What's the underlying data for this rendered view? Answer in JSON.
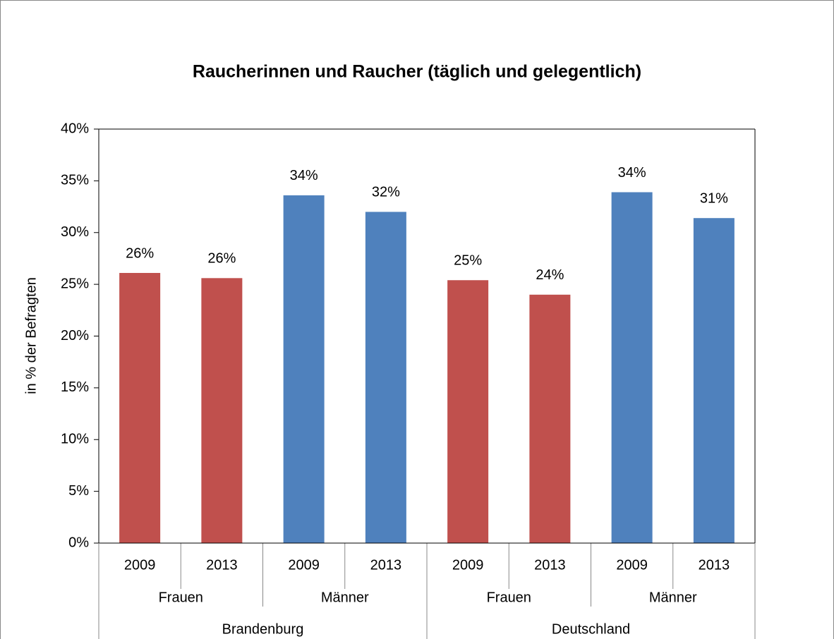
{
  "chart_data": {
    "type": "bar",
    "title": "Raucherinnen und Raucher (täglich und gelegentlich)",
    "y_label": "in % der Befragten",
    "categories": [
      "2009",
      "2013",
      "2009",
      "2013",
      "2009",
      "2013",
      "2009",
      "2013"
    ],
    "category_groups": [
      [
        "Frauen",
        "Männer",
        "Frauen",
        "Männer"
      ],
      [
        "Brandenburg",
        "Deutschland"
      ]
    ],
    "values": [
      26.1,
      25.6,
      33.6,
      32.0,
      25.4,
      24.0,
      33.9,
      31.4
    ],
    "value_labels": [
      "26%",
      "26%",
      "34%",
      "32%",
      "25%",
      "24%",
      "34%",
      "31%"
    ],
    "colors": [
      "#c0504d",
      "#c0504d",
      "#4f81bd",
      "#4f81bd",
      "#c0504d",
      "#c0504d",
      "#4f81bd",
      "#4f81bd"
    ],
    "ylim": [
      0,
      40
    ],
    "yticks": [
      {
        "value": 0,
        "label": "0%"
      },
      {
        "value": 5,
        "label": "5%"
      },
      {
        "value": 10,
        "label": "10%"
      },
      {
        "value": 15,
        "label": "15%"
      },
      {
        "value": 20,
        "label": "20%"
      },
      {
        "value": 25,
        "label": "25%"
      },
      {
        "value": 30,
        "label": "30%"
      },
      {
        "value": 35,
        "label": "35%"
      },
      {
        "value": 40,
        "label": "40%"
      }
    ]
  }
}
